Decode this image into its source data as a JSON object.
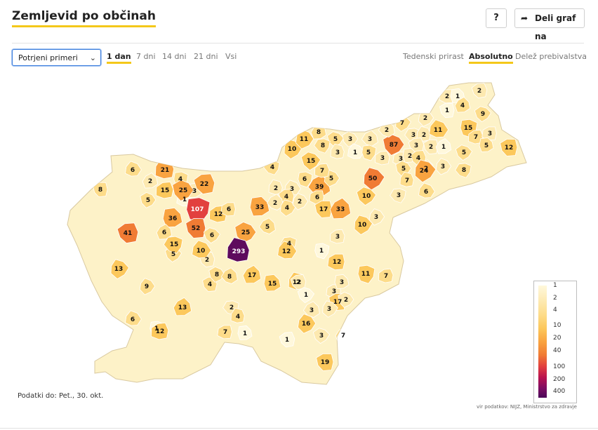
{
  "header": {
    "title": "Zemljevid po občinah",
    "help_label": "?",
    "share_label": "Deli graf na",
    "share_icon": "share-arrow-icon"
  },
  "controls": {
    "metric_select": {
      "value": "Potrjeni primeri"
    },
    "periods": [
      "1 dan",
      "7 dni",
      "14 dni",
      "21 dni",
      "Vsi"
    ],
    "active_period": "1 dan",
    "modes": [
      "Tedenski prirast",
      "Absolutno",
      "Delež prebivalstva"
    ],
    "active_mode": "Absolutno"
  },
  "legend": {
    "levels": [
      "1",
      "2",
      "4",
      "10",
      "20",
      "40",
      "100",
      "200",
      "400"
    ],
    "colors": [
      "#fff8dc",
      "#fde9b0",
      "#fddc8a",
      "#fcc85c",
      "#f9a340",
      "#f07b34",
      "#e2403e",
      "#b8124f",
      "#4a0858"
    ]
  },
  "map": {
    "labels": [
      "2",
      "1",
      "2",
      "1",
      "4",
      "9",
      "87",
      "2",
      "7",
      "2",
      "3",
      "2",
      "11",
      "15",
      "7",
      "3",
      "5",
      "3",
      "12",
      "8",
      "5",
      "3",
      "3",
      "10",
      "11",
      "8",
      "3",
      "1",
      "5",
      "3",
      "3",
      "2",
      "4",
      "2",
      "1",
      "5",
      "5",
      "2",
      "24",
      "3",
      "8",
      "21",
      "6",
      "4",
      "15",
      "1",
      "3",
      "22",
      "8",
      "2",
      "15",
      "25",
      "39",
      "50",
      "5",
      "4",
      "2",
      "3",
      "6",
      "7",
      "6",
      "33",
      "4",
      "17",
      "33",
      "10",
      "5",
      "2",
      "4",
      "2",
      "3",
      "7",
      "6",
      "107",
      "12",
      "6",
      "36",
      "41",
      "52",
      "6",
      "6",
      "25",
      "5",
      "10",
      "3",
      "4",
      "293",
      "12",
      "1",
      "3",
      "12",
      "15",
      "2",
      "4",
      "17",
      "5",
      "8",
      "8",
      "13",
      "9",
      "15",
      "12",
      "10",
      "11",
      "7",
      "3",
      "3",
      "2",
      "17",
      "13",
      "1",
      "2",
      "3",
      "3",
      "16",
      "2",
      "4",
      "6",
      "1",
      "12",
      "7",
      "1",
      "1",
      "19",
      "7",
      "3"
    ],
    "max_value": 293
  },
  "footer": {
    "data_date": "Podatki do: Pet., 30. okt.",
    "source": "vir podatkov: NIJZ, Ministrstvo za zdravje"
  }
}
